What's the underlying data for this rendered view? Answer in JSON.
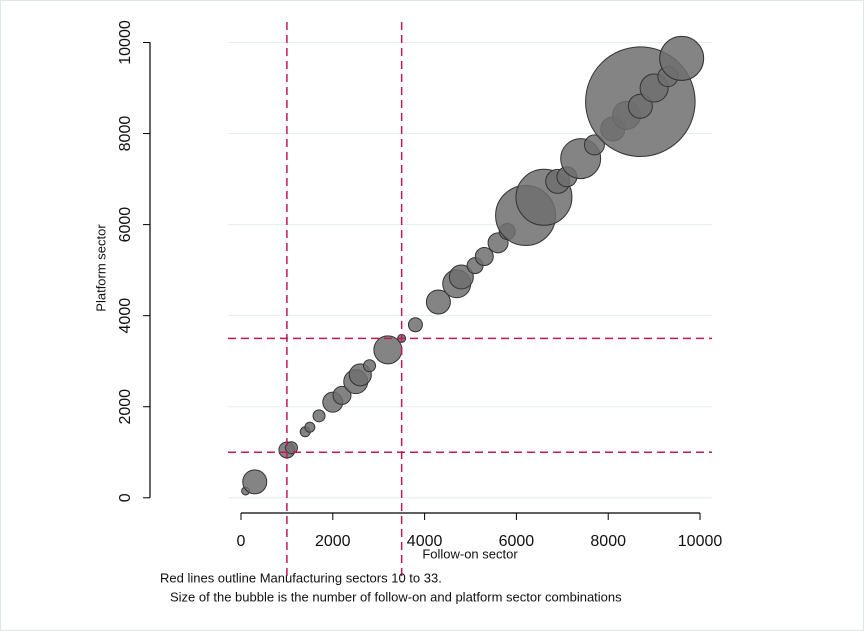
{
  "chart_data": {
    "type": "bubble",
    "xlabel": "Follow-on sector",
    "ylabel": "Platform sector",
    "notes": [
      "Red lines outline Manufacturing sectors 10 to 33.",
      "Size of the bubble is the number of follow-on and platform sector combinations"
    ],
    "x": [
      100,
      300,
      1000,
      1100,
      1400,
      1500,
      1700,
      2000,
      2200,
      2500,
      2600,
      2800,
      3200,
      3500,
      3800,
      4300,
      4700,
      4800,
      5100,
      5300,
      5600,
      5800,
      6200,
      6600,
      6900,
      7100,
      7400,
      7700,
      8100,
      8400,
      8700,
      8700,
      9000,
      9300,
      9600
    ],
    "values": [
      150,
      350,
      1050,
      1100,
      1450,
      1550,
      1800,
      2100,
      2250,
      2550,
      2700,
      2900,
      3250,
      3500,
      3800,
      4300,
      4700,
      4850,
      5100,
      5300,
      5600,
      5850,
      6200,
      6600,
      6950,
      7050,
      7450,
      7750,
      8100,
      8400,
      8700,
      8600,
      9000,
      9250,
      9650
    ],
    "sizes": [
      16,
      144,
      64,
      36,
      25,
      25,
      36,
      100,
      81,
      144,
      121,
      36,
      196,
      16,
      49,
      144,
      196,
      144,
      64,
      81,
      100,
      64,
      900,
      784,
      144,
      100,
      400,
      100,
      144,
      196,
      3000,
      144,
      196,
      100,
      484
    ],
    "color": "#6e6e6e",
    "edge_color": "#333333",
    "xlim": [
      -283,
      10261
    ],
    "ylim": [
      -400,
      10450
    ],
    "xticks": [
      0,
      2000,
      4000,
      6000,
      8000,
      10000
    ],
    "yticks": [
      0,
      2000,
      4000,
      6000,
      8000,
      10000
    ],
    "grid": true,
    "reference_lines": {
      "x": [
        1000,
        3500
      ],
      "y": [
        1000,
        3500
      ],
      "color": "#c2185b"
    }
  }
}
